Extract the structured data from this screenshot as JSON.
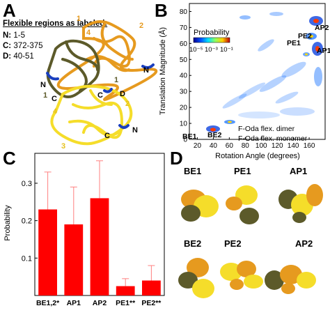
{
  "panels": {
    "a": {
      "letter": "A",
      "heading": "Flexible regions as labeled:",
      "regions": [
        {
          "key": "N:",
          "range": "1-5"
        },
        {
          "key": "C:",
          "range": "372-375"
        },
        {
          "key": "D:",
          "range": "40-51"
        }
      ],
      "labels": {
        "n_left": "N",
        "c_left": "C",
        "one": "1",
        "three": "3",
        "four_left": "4",
        "two_top": "2",
        "four_top": "4",
        "one_top": "1",
        "n_right": "N",
        "d_mid": "D",
        "c_mid": "C",
        "c_right": "C",
        "n_lower": "N",
        "one_right": "1",
        "two_right": "2"
      }
    },
    "b": {
      "letter": "B",
      "legend_title": "Probability",
      "legend_ticks": [
        "10⁻⁵",
        "10⁻³",
        "10⁻¹"
      ],
      "xlabel": "Rotation Angle (degrees)",
      "ylabel": "Translation Magnitude (Å)",
      "xticks": [
        "20",
        "40",
        "60",
        "80",
        "100",
        "120",
        "140",
        "160"
      ],
      "yticks": [
        "0",
        "10",
        "20",
        "30",
        "40",
        "50",
        "60",
        "70",
        "80"
      ],
      "annotations": [
        "AP2",
        "PE2",
        "PE1",
        "AP1",
        "BE1",
        "BE2"
      ],
      "notes": [
        "F-Oda flex. dimer",
        "F-Oda flex. monomer"
      ]
    },
    "c": {
      "letter": "C",
      "ylabel": "Probability",
      "yticks": [
        "0.1",
        "0.2",
        "0.3"
      ]
    },
    "d": {
      "letter": "D",
      "labels": [
        "BE1",
        "PE1",
        "AP1",
        "BE2",
        "PE2",
        "AP2"
      ]
    }
  },
  "colors": {
    "bar": "#ff0000",
    "olive": "#5c5a2a",
    "orange": "#e69a1f",
    "yellow": "#f5dd2a",
    "blue": "#1a3fbf"
  },
  "chart_data": {
    "type": "bar",
    "categories": [
      "BE1,2*",
      "AP1",
      "AP2",
      "PE1**",
      "PE2**"
    ],
    "values": [
      0.23,
      0.19,
      0.26,
      0.025,
      0.04
    ],
    "errors": [
      0.1,
      0.1,
      0.1,
      0.02,
      0.04
    ],
    "title": "",
    "xlabel": "",
    "ylabel": "Probability",
    "ylim": [
      0,
      0.38
    ]
  }
}
